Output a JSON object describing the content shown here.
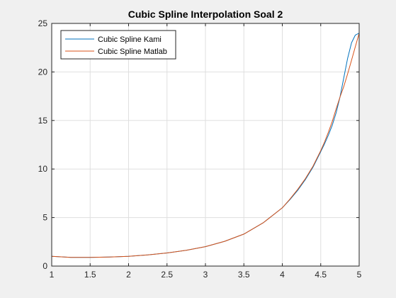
{
  "colors": {
    "figure_background": "#f0f0f0",
    "axes_background": "#ffffff",
    "grid": "#dfdfdf",
    "axis": "#262626"
  },
  "chart_data": {
    "type": "line",
    "title": "Cubic Spline Interpolation Soal 2",
    "xlabel": "",
    "ylabel": "",
    "xlim": [
      1,
      5
    ],
    "ylim": [
      0,
      25
    ],
    "xticks": [
      1,
      1.5,
      2,
      2.5,
      3,
      3.5,
      4,
      4.5,
      5
    ],
    "xtick_labels": [
      "1",
      "1.5",
      "2",
      "2.5",
      "3",
      "3.5",
      "4",
      "4.5",
      "5"
    ],
    "yticks": [
      0,
      5,
      10,
      15,
      20,
      25
    ],
    "ytick_labels": [
      "0",
      "5",
      "10",
      "15",
      "20",
      "25"
    ],
    "grid": true,
    "legend_position": "top-left",
    "series": [
      {
        "name": "Cubic Spline Kami",
        "color": "#0072bd",
        "x": [
          1.0,
          1.25,
          1.5,
          1.75,
          2.0,
          2.25,
          2.5,
          2.75,
          3.0,
          3.25,
          3.5,
          3.75,
          4.0,
          4.1,
          4.2,
          4.3,
          4.4,
          4.5,
          4.55,
          4.6,
          4.65,
          4.7,
          4.75,
          4.8,
          4.85,
          4.9,
          4.95,
          5.0
        ],
        "y": [
          1.0,
          0.9,
          0.89,
          0.93,
          1.0,
          1.15,
          1.35,
          1.62,
          2.0,
          2.55,
          3.3,
          4.45,
          6.0,
          6.85,
          7.8,
          8.9,
          10.2,
          11.8,
          12.6,
          13.5,
          14.5,
          15.8,
          17.4,
          19.4,
          21.4,
          23.0,
          23.8,
          24.0
        ]
      },
      {
        "name": "Cubic Spline Matlab",
        "color": "#d95319",
        "x": [
          1.0,
          1.25,
          1.5,
          1.75,
          2.0,
          2.25,
          2.5,
          2.75,
          3.0,
          3.25,
          3.5,
          3.75,
          4.0,
          4.1,
          4.2,
          4.3,
          4.4,
          4.5,
          4.55,
          4.6,
          4.65,
          4.7,
          4.75,
          4.8,
          4.85,
          4.9,
          4.95,
          5.0
        ],
        "y": [
          1.0,
          0.9,
          0.89,
          0.93,
          1.0,
          1.15,
          1.35,
          1.62,
          2.0,
          2.55,
          3.3,
          4.45,
          6.0,
          6.9,
          7.9,
          9.0,
          10.3,
          11.9,
          12.8,
          13.8,
          14.9,
          16.2,
          17.4,
          18.5,
          19.8,
          21.2,
          22.6,
          24.0
        ]
      }
    ]
  }
}
